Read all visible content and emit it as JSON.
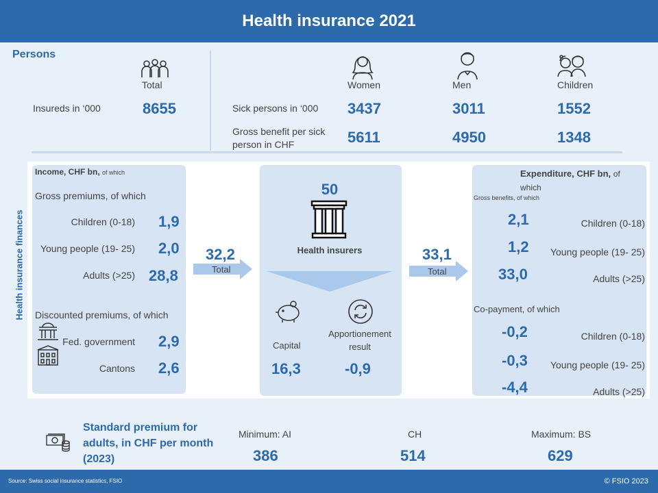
{
  "header": {
    "title": "Health insurance 2021"
  },
  "persons": {
    "title": "Persons",
    "total_label": "Total",
    "insureds_label": "Insureds in ‘000",
    "insureds_value": "8655",
    "col_women": "Women",
    "col_men": "Men",
    "col_children": "Children",
    "sick_label": "Sick persons in ‘000",
    "sick_women": "3437",
    "sick_men": "3011",
    "sick_children": "1552",
    "benefit_label_1": "Gross benefit per sick",
    "benefit_label_2": "person in CHF",
    "benefit_women": "5611",
    "benefit_men": "4950",
    "benefit_children": "1348"
  },
  "finances": {
    "side_label": "Health insurance finances",
    "income": {
      "title": "Income, CHF bn,",
      "title_suffix": "of which",
      "gross_label": "Gross premiums,  of which",
      "children_label": "Children (0-18)",
      "children_value": "1,9",
      "young_label": "Young people (19- 25)",
      "young_value": "2,0",
      "adults_label": "Adults (>25)",
      "adults_value": "28,8",
      "discounted_label": "Discounted premiums,  of which",
      "fed_label": "Fed. government",
      "fed_value": "2,9",
      "cantons_label": "Cantons",
      "cantons_value": "2,6"
    },
    "income_total": {
      "value": "32,2",
      "label": "Total"
    },
    "insurers": {
      "count": "50",
      "label": "Health insurers",
      "capital_label": "Capital",
      "capital_value": "16,3",
      "apportion_label_1": "Apportionement",
      "apportion_label_2": "result",
      "apportion_value": "-0,9"
    },
    "expenditure_total": {
      "value": "33,1",
      "label": "Total"
    },
    "expenditure": {
      "title": "Expenditure, CHF bn,",
      "title_suffix_1": "of",
      "title_suffix_2": "which",
      "gross_label": "Gross benefits, of which",
      "children_value": "2,1",
      "children_label": "Children (0-18)",
      "young_value": "1,2",
      "young_label": "Young people (19- 25)",
      "adults_value": "33,0",
      "adults_label": "Adults (>25)",
      "copay_label": "Co-payment, of which",
      "copay_children_value": "-0,2",
      "copay_children_label": "Children (0-18)",
      "copay_young_value": "-0,3",
      "copay_young_label": "Young people (19- 25)",
      "copay_adults_value": "-4,4",
      "copay_adults_label": "Adults (>25)"
    }
  },
  "premium": {
    "title_1": "Standard premium for",
    "title_2": "adults, in CHF per month",
    "title_3": "(2023)",
    "min_label": "Minimum:  AI",
    "min_value": "386",
    "ch_label": "CH",
    "ch_value": "514",
    "max_label": "Maximum:  BS",
    "max_value": "629"
  },
  "footer": {
    "source": "Source:  Swiss social insurance statistics, FSIO",
    "copyright": "© FSIO 2023"
  },
  "colors": {
    "brand": "#2d6aab",
    "panel": "#d6e4f3",
    "background": "#e8f0f9"
  }
}
